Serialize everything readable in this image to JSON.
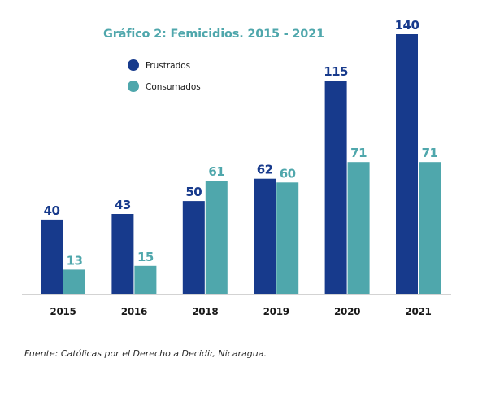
{
  "chart_data": {
    "type": "bar",
    "title": "Gráfico 2: Femicidios. 2015 - 2021",
    "categories": [
      "2015",
      "2016",
      "2018",
      "2019",
      "2020",
      "2021"
    ],
    "series": [
      {
        "name": "Frustrados",
        "values": [
          40,
          43,
          50,
          62,
          115,
          140
        ],
        "color": "#173a8c"
      },
      {
        "name": "Consumados",
        "values": [
          13,
          15,
          61,
          60,
          71,
          71
        ],
        "color": "#4fa7ac"
      }
    ],
    "ylim": [
      0,
      140
    ],
    "grid": false,
    "legend_position": "top-left",
    "value_labels": true,
    "colors": {
      "label_dark": "#173a8c",
      "label_teal": "#4fa7ac"
    }
  },
  "source_text": "Fuente: Católicas por el Derecho a Decidir, Nicaragua."
}
